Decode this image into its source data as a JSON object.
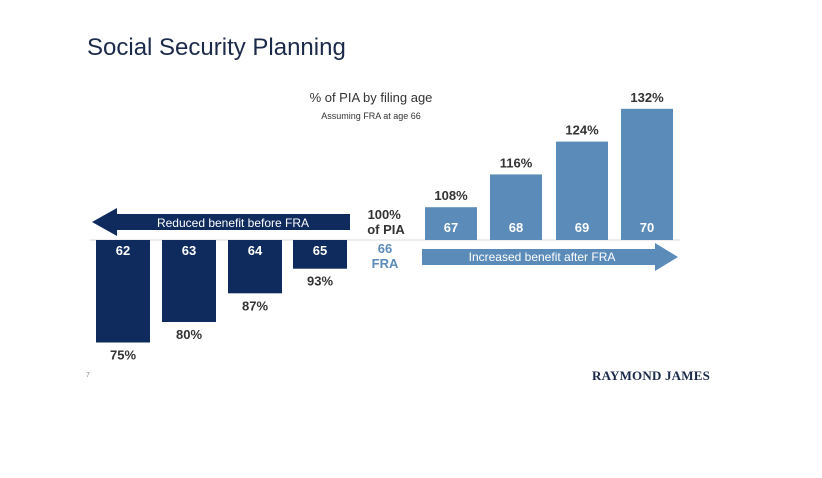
{
  "slide": {
    "title": "Social Security Planning",
    "page_number": "7",
    "logo_text": "RAYMOND JAMES"
  },
  "colors": {
    "reduced": "#0f2a5c",
    "increased": "#5b8bb8",
    "fra_label": "#5b8bb8",
    "text_dark": "#333333"
  },
  "chart_data": {
    "type": "bar",
    "title": "% of PIA by filing age",
    "subtitle": "Assuming FRA at age 66",
    "baseline_label": "100% of PIA",
    "fra_age_label": "66",
    "fra_label": "FRA",
    "reduced_arrow_label": "Reduced benefit before FRA",
    "increased_arrow_label": "Increased benefit after FRA",
    "baseline_value": 100,
    "reduced": {
      "categories": [
        "62",
        "63",
        "64",
        "65"
      ],
      "values": [
        75,
        80,
        87,
        93
      ],
      "labels": [
        "75%",
        "80%",
        "87%",
        "93%"
      ]
    },
    "increased": {
      "categories": [
        "67",
        "68",
        "69",
        "70"
      ],
      "values": [
        108,
        116,
        124,
        132
      ],
      "labels": [
        "108%",
        "116%",
        "124%",
        "132%"
      ]
    }
  }
}
